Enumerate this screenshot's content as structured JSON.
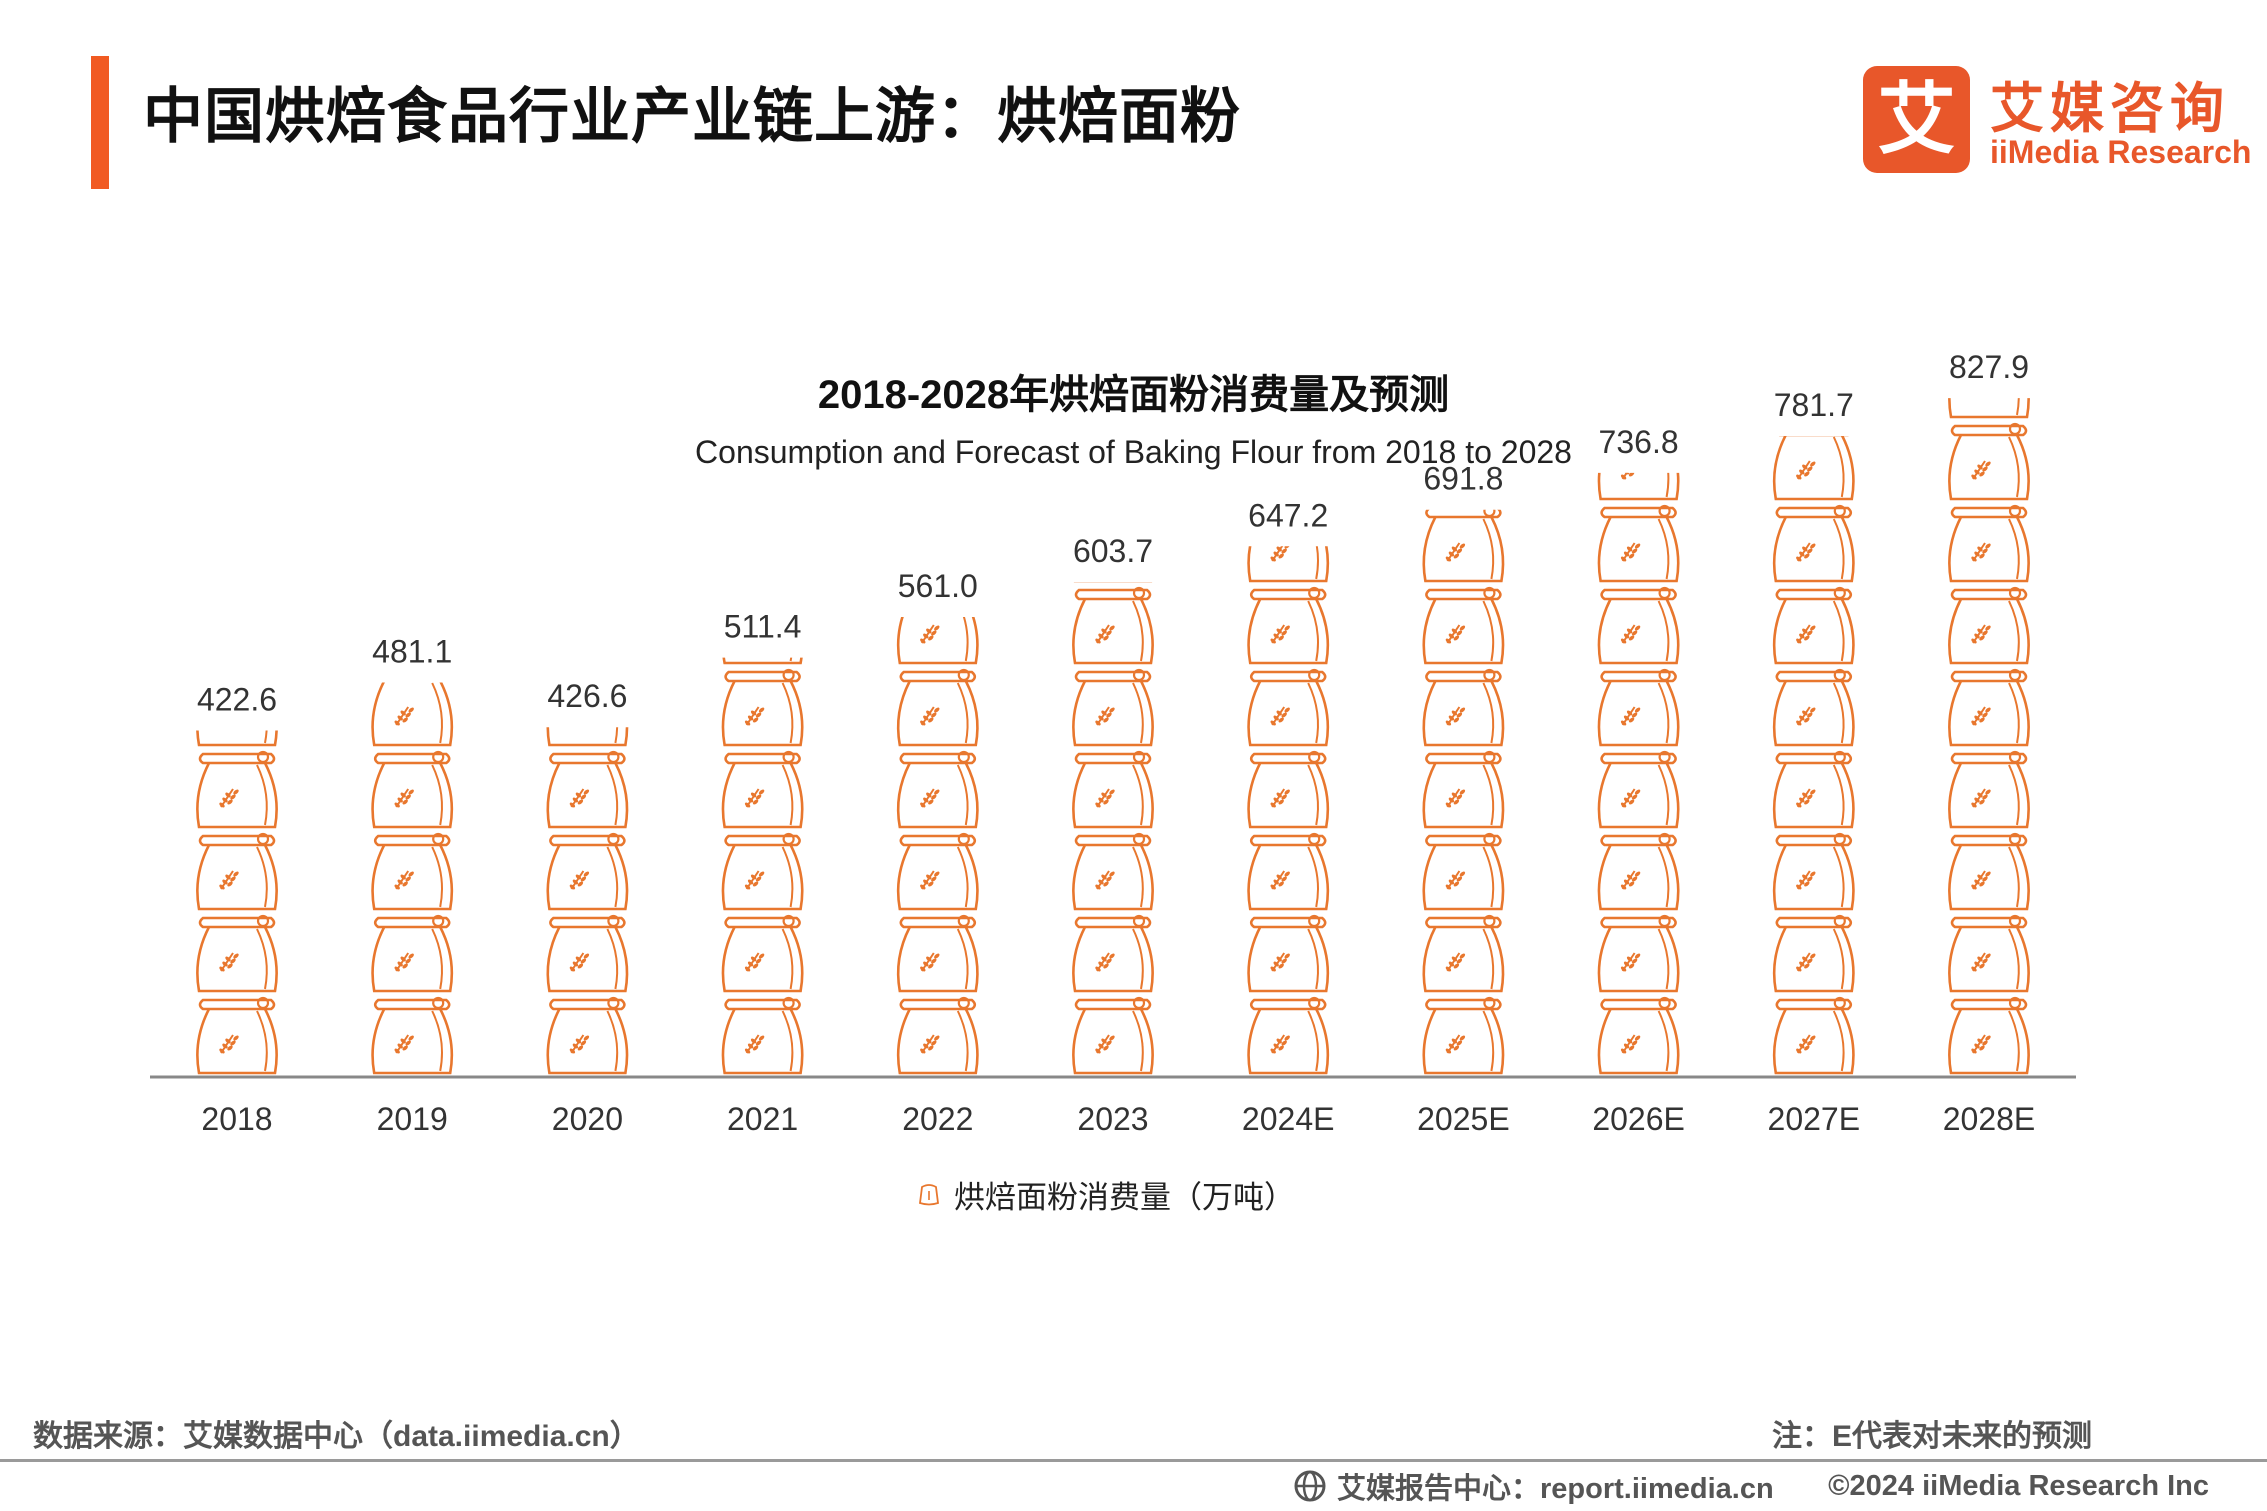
{
  "header": {
    "title": "中国烘焙食品行业产业链上游：烘焙面粉",
    "logo_cn": "艾媒咨询",
    "logo_box_char": "艾",
    "logo_en": "iiMedia Research",
    "accent_color": "#F15A22"
  },
  "chart_data": {
    "type": "bar",
    "title": "2018-2028年烘焙面粉消费量及预测",
    "subtitle": "Consumption and Forecast  of Baking Flour  from 2018 to 2028",
    "categories": [
      "2018",
      "2019",
      "2020",
      "2021",
      "2022",
      "2023",
      "2024E",
      "2025E",
      "2026E",
      "2027E",
      "2028E"
    ],
    "series": [
      {
        "name": "烘焙面粉消费量（万吨）",
        "values": [
          422.6,
          481.1,
          426.6,
          511.4,
          561.0,
          603.7,
          647.2,
          691.8,
          736.8,
          781.7,
          827.9
        ],
        "labels": [
          "422.6",
          "481.1",
          "426.6",
          "511.4",
          "561.0",
          "603.7",
          "647.2",
          "691.8",
          "736.8",
          "781.7",
          "827.9"
        ],
        "color": "#E8772E",
        "icon": "flour-sack-icon",
        "icon_unit": 100
      }
    ],
    "ylim": [
      0,
      850
    ],
    "grid": false,
    "legend_position": "bottom"
  },
  "footer": {
    "source": "数据来源：艾媒数据中心（data.iimedia.cn）",
    "note": "注：E代表对未来的预测",
    "report": "艾媒报告中心：report.iimedia.cn",
    "copyright": "©2024 iiMedia Research  Inc"
  }
}
